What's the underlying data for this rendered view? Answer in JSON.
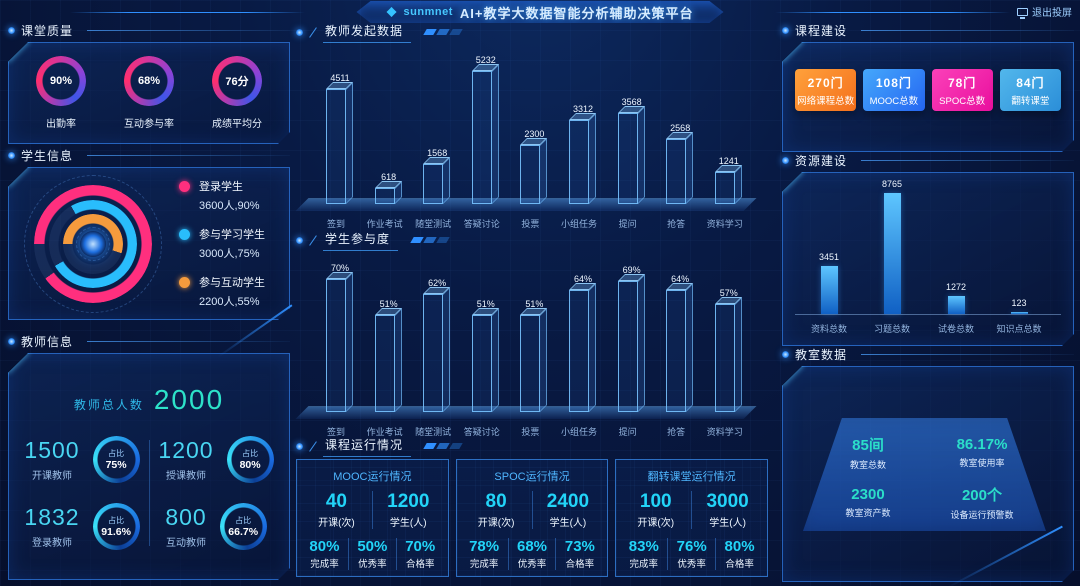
{
  "header": {
    "logo": "sunmnet",
    "title": "AI+教学大数据智能分析辅助决策平台",
    "screen_button": "退出投屏"
  },
  "colors": {
    "pink": "#ff2f7e",
    "cyan": "#29bdfc",
    "orange": "#f59b3d",
    "teal": "#2bdec9",
    "number_cyan": "#22d4f8",
    "panel_border": "#2a6fd0"
  },
  "left": {
    "quality": {
      "title": "课堂质量",
      "gauges": [
        {
          "value": "90%",
          "label": "出勤率"
        },
        {
          "value": "68%",
          "label": "互动参与率"
        },
        {
          "value": "76分",
          "label": "成绩平均分"
        }
      ]
    },
    "students": {
      "title": "学生信息",
      "legend": [
        {
          "label": "登录学生",
          "value": "3600人,90%",
          "color": "#ff2f7e",
          "pct": 90
        },
        {
          "label": "参与学习学生",
          "value": "3000人,75%",
          "color": "#29bdfc",
          "pct": 75
        },
        {
          "label": "参与互动学生",
          "value": "2200人,55%",
          "color": "#f59b3d",
          "pct": 55
        }
      ]
    },
    "teachers": {
      "title": "教师信息",
      "total_label": "教师总人数",
      "total_value": "2000",
      "stats": [
        {
          "value": "1500",
          "label": "开课教师",
          "ratio_label": "占比",
          "ratio": "75%"
        },
        {
          "value": "1200",
          "label": "授课教师",
          "ratio_label": "占比",
          "ratio": "80%"
        },
        {
          "value": "1832",
          "label": "登录教师",
          "ratio_label": "占比",
          "ratio": "91.6%"
        },
        {
          "value": "800",
          "label": "互动教师",
          "ratio_label": "占比",
          "ratio": "66.7%"
        }
      ]
    }
  },
  "middle": {
    "course_running": {
      "title": "课程运行情况",
      "cards": [
        {
          "title": "MOOC运行情况",
          "open": "40",
          "open_label": "开课(次)",
          "students": "1200",
          "students_label": "学生(人)",
          "rates": [
            {
              "value": "80%",
              "label": "完成率"
            },
            {
              "value": "50%",
              "label": "优秀率"
            },
            {
              "value": "70%",
              "label": "合格率"
            }
          ]
        },
        {
          "title": "SPOC运行情况",
          "open": "80",
          "open_label": "开课(次)",
          "students": "2400",
          "students_label": "学生(人)",
          "rates": [
            {
              "value": "78%",
              "label": "完成率"
            },
            {
              "value": "68%",
              "label": "优秀率"
            },
            {
              "value": "73%",
              "label": "合格率"
            }
          ]
        },
        {
          "title": "翻转课堂运行情况",
          "open": "100",
          "open_label": "开课(次)",
          "students": "3000",
          "students_label": "学生(人)",
          "rates": [
            {
              "value": "83%",
              "label": "完成率"
            },
            {
              "value": "76%",
              "label": "优秀率"
            },
            {
              "value": "80%",
              "label": "合格率"
            }
          ]
        }
      ]
    }
  },
  "right": {
    "course_build": {
      "title": "课程建设",
      "cards": [
        {
          "value": "270门",
          "label": "网络课程总数",
          "color1": "#ffa13b",
          "color2": "#f4701d"
        },
        {
          "value": "108门",
          "label": "MOOC总数",
          "color1": "#45a8fb",
          "color2": "#2566f2"
        },
        {
          "value": "78门",
          "label": "SPOC总数",
          "color1": "#fb41b9",
          "color2": "#e90f9e"
        },
        {
          "value": "84门",
          "label": "翻转课堂",
          "color1": "#52b7ec",
          "color2": "#2b8ed8"
        }
      ]
    },
    "resource_build": {
      "title": "资源建设"
    },
    "classroom": {
      "title": "教室数据",
      "stats": [
        {
          "value": "85间",
          "label": "教室总数"
        },
        {
          "value": "86.17%",
          "label": "教室使用率"
        },
        {
          "value": "2300",
          "label": "教室资产数"
        },
        {
          "value": "200个",
          "label": "设备运行预警数"
        }
      ]
    }
  },
  "chart_data": [
    {
      "type": "pie",
      "title": "课堂质量",
      "labels": [
        "出勤率",
        "互动参与率",
        "成绩平均分"
      ],
      "values": [
        90,
        68,
        76
      ],
      "units": [
        "%",
        "%",
        "分"
      ]
    },
    {
      "type": "pie",
      "title": "学生信息",
      "labels": [
        "登录学生",
        "参与学习学生",
        "参与互动学生"
      ],
      "values": [
        3600,
        3000,
        2200
      ],
      "percents": [
        90,
        75,
        55
      ]
    },
    {
      "type": "bar",
      "title": "教师发起数据",
      "categories": [
        "签到",
        "作业考试",
        "随堂测试",
        "答疑讨论",
        "投票",
        "小组任务",
        "提问",
        "抢答",
        "资料学习"
      ],
      "values": [
        4511,
        618,
        1568,
        5232,
        2300,
        3312,
        3568,
        2568,
        1241
      ],
      "xlabel": "",
      "ylabel": "",
      "ylim": [
        0,
        5500
      ],
      "grid": false,
      "legend": "none"
    },
    {
      "type": "bar",
      "title": "学生参与度",
      "categories": [
        "签到",
        "作业考试",
        "随堂测试",
        "答疑讨论",
        "投票",
        "小组任务",
        "提问",
        "抢答",
        "资料学习"
      ],
      "values": [
        70,
        51,
        62,
        51,
        51,
        64,
        69,
        64,
        57
      ],
      "unit": "%",
      "xlabel": "",
      "ylabel": "",
      "ylim": [
        0,
        80
      ],
      "grid": false,
      "legend": "none"
    },
    {
      "type": "bar",
      "title": "资源建设",
      "categories": [
        "资料总数",
        "习题总数",
        "试卷总数",
        "知识点总数"
      ],
      "values": [
        3451,
        8765,
        1272,
        123
      ],
      "xlabel": "",
      "ylabel": "",
      "ylim": [
        0,
        9000
      ],
      "grid": false,
      "legend": "none"
    }
  ]
}
